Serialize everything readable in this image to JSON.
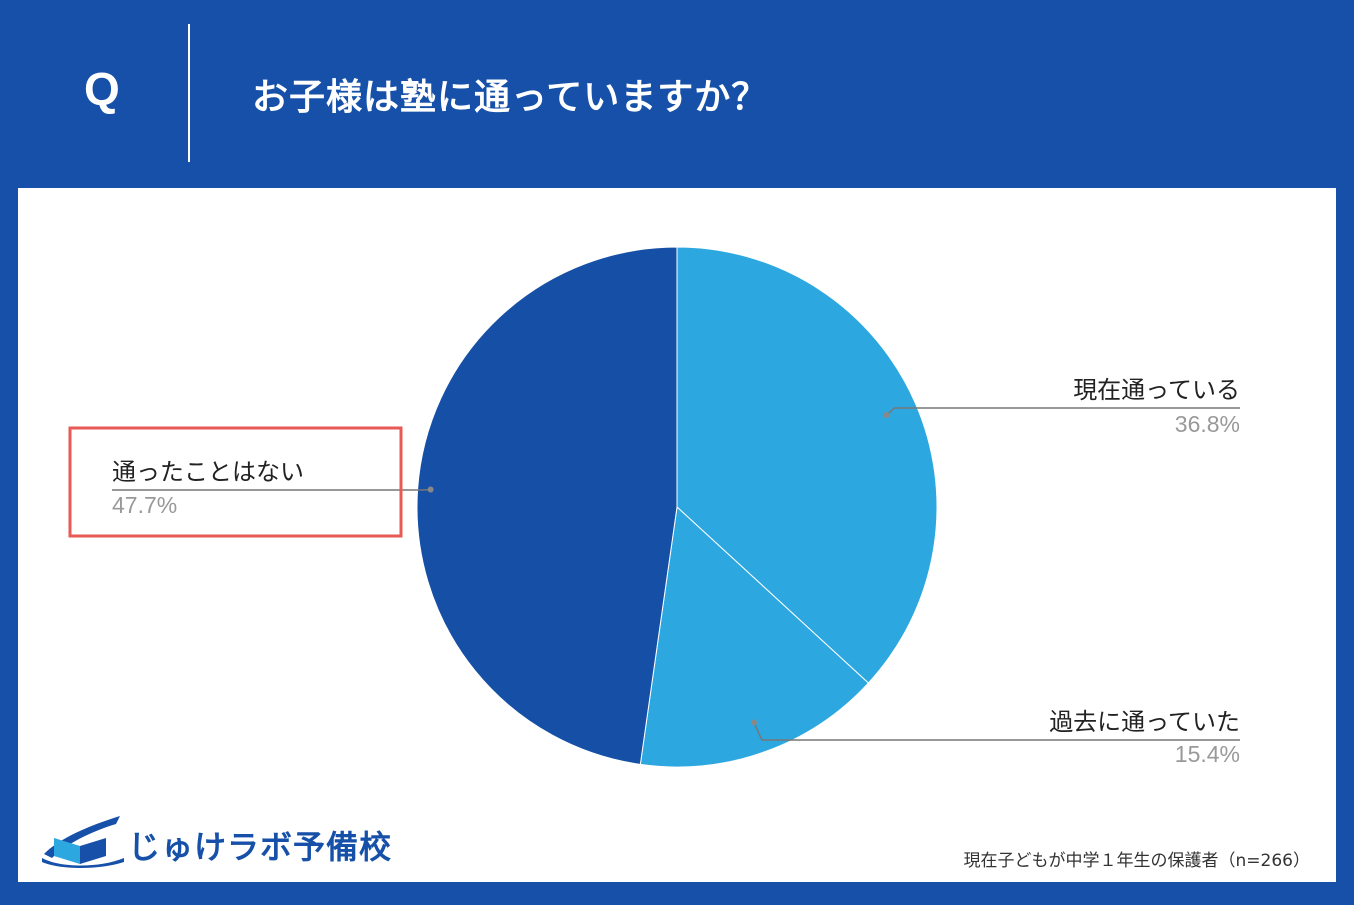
{
  "header": {
    "q_mark": "Q",
    "question": "お子様は塾に通っていますか？"
  },
  "logo": {
    "name": "じゅけラボ予備校"
  },
  "footer": {
    "note": "現在子どもが中学１年生の保護者（n=266）"
  },
  "colors": {
    "background": "#1650a8",
    "dark_blue": "#154fa6",
    "light_blue": "#2ca7e0",
    "highlight": "#e85a55",
    "leader": "#777777",
    "pct_text": "#999999"
  },
  "chart_data": {
    "type": "pie",
    "title": "",
    "slices": [
      {
        "label": "現在通っている",
        "value": 36.8,
        "pct": "36.8%",
        "color": "#2ca7e0"
      },
      {
        "label": "過去に通っていた",
        "value": 15.4,
        "pct": "15.4%",
        "color": "#2ca7e0"
      },
      {
        "label": "通ったことはない",
        "value": 47.7,
        "pct": "47.7%",
        "color": "#154fa6"
      }
    ],
    "highlighted": "通ったことはない",
    "start": "12 o'clock",
    "direction": "clockwise"
  }
}
